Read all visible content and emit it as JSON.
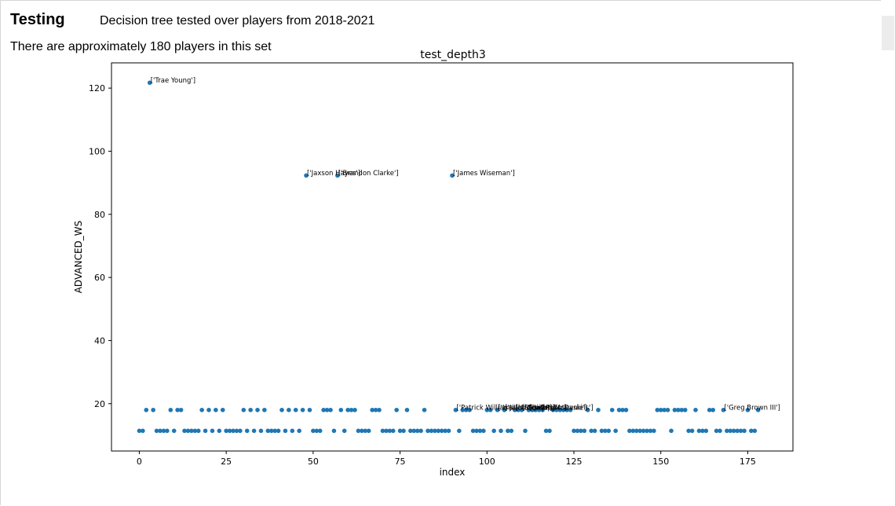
{
  "page": {
    "heading": "Testing",
    "subtitle": "Decision tree tested over players from 2018-2021",
    "note": "There are approximately 180 players in this set"
  },
  "colors": {
    "marker": "#1f77b4",
    "axis": "#000000",
    "background": "#ffffff"
  },
  "chart_data": {
    "type": "scatter",
    "title": "test_depth3",
    "xlabel": "index",
    "ylabel": "ADVANCED_WS",
    "xlim": [
      -8,
      188
    ],
    "ylim": [
      5,
      128
    ],
    "xticks": [
      0,
      25,
      50,
      75,
      100,
      125,
      150,
      175
    ],
    "yticks": [
      20,
      40,
      60,
      80,
      100,
      120
    ],
    "grid": false,
    "points": [
      {
        "x": 0,
        "y": 11.4
      },
      {
        "x": 1,
        "y": 11.4
      },
      {
        "x": 2,
        "y": 18
      },
      {
        "x": 4,
        "y": 18
      },
      {
        "x": 5,
        "y": 11.4
      },
      {
        "x": 6,
        "y": 11.4
      },
      {
        "x": 7,
        "y": 11.4
      },
      {
        "x": 8,
        "y": 11.4
      },
      {
        "x": 9,
        "y": 18
      },
      {
        "x": 10,
        "y": 11.4
      },
      {
        "x": 11,
        "y": 18
      },
      {
        "x": 12,
        "y": 18
      },
      {
        "x": 13,
        "y": 11.4
      },
      {
        "x": 14,
        "y": 11.4
      },
      {
        "x": 15,
        "y": 11.4
      },
      {
        "x": 16,
        "y": 11.4
      },
      {
        "x": 17,
        "y": 11.4
      },
      {
        "x": 18,
        "y": 18
      },
      {
        "x": 19,
        "y": 11.4
      },
      {
        "x": 20,
        "y": 18
      },
      {
        "x": 21,
        "y": 11.4
      },
      {
        "x": 22,
        "y": 18
      },
      {
        "x": 23,
        "y": 11.4
      },
      {
        "x": 24,
        "y": 18
      },
      {
        "x": 25,
        "y": 11.4
      },
      {
        "x": 26,
        "y": 11.4
      },
      {
        "x": 27,
        "y": 11.4
      },
      {
        "x": 28,
        "y": 11.4
      },
      {
        "x": 29,
        "y": 11.4
      },
      {
        "x": 30,
        "y": 18
      },
      {
        "x": 31,
        "y": 11.4
      },
      {
        "x": 32,
        "y": 18
      },
      {
        "x": 33,
        "y": 11.4
      },
      {
        "x": 34,
        "y": 18
      },
      {
        "x": 35,
        "y": 11.4
      },
      {
        "x": 36,
        "y": 18
      },
      {
        "x": 37,
        "y": 11.4
      },
      {
        "x": 38,
        "y": 11.4
      },
      {
        "x": 39,
        "y": 11.4
      },
      {
        "x": 40,
        "y": 11.4
      },
      {
        "x": 41,
        "y": 18
      },
      {
        "x": 42,
        "y": 11.4
      },
      {
        "x": 43,
        "y": 18
      },
      {
        "x": 44,
        "y": 11.4
      },
      {
        "x": 45,
        "y": 18
      },
      {
        "x": 46,
        "y": 11.4
      },
      {
        "x": 47,
        "y": 18
      },
      {
        "x": 48,
        "y": 92.3
      },
      {
        "x": 49,
        "y": 18
      },
      {
        "x": 50,
        "y": 11.4
      },
      {
        "x": 51,
        "y": 11.4
      },
      {
        "x": 52,
        "y": 11.4
      },
      {
        "x": 53,
        "y": 18
      },
      {
        "x": 54,
        "y": 18
      },
      {
        "x": 55,
        "y": 18
      },
      {
        "x": 56,
        "y": 11.4
      },
      {
        "x": 57,
        "y": 92.3
      },
      {
        "x": 58,
        "y": 18
      },
      {
        "x": 59,
        "y": 11.4
      },
      {
        "x": 60,
        "y": 18
      },
      {
        "x": 61,
        "y": 18
      },
      {
        "x": 62,
        "y": 18
      },
      {
        "x": 63,
        "y": 11.4
      },
      {
        "x": 64,
        "y": 11.4
      },
      {
        "x": 65,
        "y": 11.4
      },
      {
        "x": 66,
        "y": 11.4
      },
      {
        "x": 67,
        "y": 18
      },
      {
        "x": 68,
        "y": 18
      },
      {
        "x": 69,
        "y": 18
      },
      {
        "x": 70,
        "y": 11.4
      },
      {
        "x": 71,
        "y": 11.4
      },
      {
        "x": 72,
        "y": 11.4
      },
      {
        "x": 73,
        "y": 11.4
      },
      {
        "x": 74,
        "y": 18
      },
      {
        "x": 75,
        "y": 11.4
      },
      {
        "x": 76,
        "y": 11.4
      },
      {
        "x": 77,
        "y": 18
      },
      {
        "x": 78,
        "y": 11.4
      },
      {
        "x": 79,
        "y": 11.4
      },
      {
        "x": 80,
        "y": 11.4
      },
      {
        "x": 81,
        "y": 11.4
      },
      {
        "x": 82,
        "y": 18
      },
      {
        "x": 83,
        "y": 11.4
      },
      {
        "x": 84,
        "y": 11.4
      },
      {
        "x": 85,
        "y": 11.4
      },
      {
        "x": 86,
        "y": 11.4
      },
      {
        "x": 87,
        "y": 11.4
      },
      {
        "x": 88,
        "y": 11.4
      },
      {
        "x": 89,
        "y": 11.4
      },
      {
        "x": 90,
        "y": 92.3
      },
      {
        "x": 91,
        "y": 18
      },
      {
        "x": 92,
        "y": 11.4
      },
      {
        "x": 93,
        "y": 18
      },
      {
        "x": 94,
        "y": 18
      },
      {
        "x": 95,
        "y": 18
      },
      {
        "x": 96,
        "y": 11.4
      },
      {
        "x": 97,
        "y": 11.4
      },
      {
        "x": 98,
        "y": 11.4
      },
      {
        "x": 99,
        "y": 11.4
      },
      {
        "x": 100,
        "y": 18
      },
      {
        "x": 101,
        "y": 18
      },
      {
        "x": 102,
        "y": 11.4
      },
      {
        "x": 103,
        "y": 18
      },
      {
        "x": 104,
        "y": 11.4
      },
      {
        "x": 105,
        "y": 18
      },
      {
        "x": 106,
        "y": 11.4
      },
      {
        "x": 107,
        "y": 11.4
      },
      {
        "x": 108,
        "y": 18
      },
      {
        "x": 109,
        "y": 18
      },
      {
        "x": 110,
        "y": 18
      },
      {
        "x": 111,
        "y": 11.4
      },
      {
        "x": 112,
        "y": 18
      },
      {
        "x": 113,
        "y": 18
      },
      {
        "x": 114,
        "y": 18
      },
      {
        "x": 115,
        "y": 18
      },
      {
        "x": 116,
        "y": 18
      },
      {
        "x": 117,
        "y": 11.4
      },
      {
        "x": 118,
        "y": 11.4
      },
      {
        "x": 119,
        "y": 18
      },
      {
        "x": 120,
        "y": 18
      },
      {
        "x": 121,
        "y": 18
      },
      {
        "x": 122,
        "y": 18
      },
      {
        "x": 123,
        "y": 18
      },
      {
        "x": 124,
        "y": 18
      },
      {
        "x": 125,
        "y": 11.4
      },
      {
        "x": 126,
        "y": 11.4
      },
      {
        "x": 127,
        "y": 11.4
      },
      {
        "x": 128,
        "y": 11.4
      },
      {
        "x": 129,
        "y": 18
      },
      {
        "x": 130,
        "y": 11.4
      },
      {
        "x": 131,
        "y": 11.4
      },
      {
        "x": 132,
        "y": 18
      },
      {
        "x": 133,
        "y": 11.4
      },
      {
        "x": 134,
        "y": 11.4
      },
      {
        "x": 135,
        "y": 11.4
      },
      {
        "x": 136,
        "y": 18
      },
      {
        "x": 137,
        "y": 11.4
      },
      {
        "x": 138,
        "y": 18
      },
      {
        "x": 139,
        "y": 18
      },
      {
        "x": 140,
        "y": 18
      },
      {
        "x": 141,
        "y": 11.4
      },
      {
        "x": 142,
        "y": 11.4
      },
      {
        "x": 143,
        "y": 11.4
      },
      {
        "x": 144,
        "y": 11.4
      },
      {
        "x": 145,
        "y": 11.4
      },
      {
        "x": 146,
        "y": 11.4
      },
      {
        "x": 147,
        "y": 11.4
      },
      {
        "x": 148,
        "y": 11.4
      },
      {
        "x": 149,
        "y": 18
      },
      {
        "x": 150,
        "y": 18
      },
      {
        "x": 151,
        "y": 18
      },
      {
        "x": 152,
        "y": 18
      },
      {
        "x": 153,
        "y": 11.4
      },
      {
        "x": 154,
        "y": 18
      },
      {
        "x": 155,
        "y": 18
      },
      {
        "x": 156,
        "y": 18
      },
      {
        "x": 157,
        "y": 18
      },
      {
        "x": 158,
        "y": 11.4
      },
      {
        "x": 159,
        "y": 11.4
      },
      {
        "x": 160,
        "y": 18
      },
      {
        "x": 161,
        "y": 11.4
      },
      {
        "x": 162,
        "y": 11.4
      },
      {
        "x": 163,
        "y": 11.4
      },
      {
        "x": 164,
        "y": 18
      },
      {
        "x": 165,
        "y": 18
      },
      {
        "x": 166,
        "y": 11.4
      },
      {
        "x": 167,
        "y": 11.4
      },
      {
        "x": 168,
        "y": 18
      },
      {
        "x": 169,
        "y": 11.4
      },
      {
        "x": 170,
        "y": 11.4
      },
      {
        "x": 171,
        "y": 11.4
      },
      {
        "x": 172,
        "y": 11.4
      },
      {
        "x": 173,
        "y": 11.4
      },
      {
        "x": 174,
        "y": 11.4
      },
      {
        "x": 175,
        "y": 18
      },
      {
        "x": 176,
        "y": 11.4
      },
      {
        "x": 177,
        "y": 11.4
      },
      {
        "x": 178,
        "y": 18
      },
      {
        "x": 3,
        "y": 121.7
      }
    ],
    "annotations": [
      {
        "x": 3,
        "y": 121.7,
        "text": "['Trae Young']"
      },
      {
        "x": 48,
        "y": 92.3,
        "text": "['Jaxson Hayes']"
      },
      {
        "x": 57,
        "y": 92.3,
        "text": "['Brandon Clarke']"
      },
      {
        "x": 90,
        "y": 92.3,
        "text": "['James Wiseman']"
      },
      {
        "x": 91,
        "y": 18,
        "text": "['Patrick Williams']"
      },
      {
        "x": 103,
        "y": 18,
        "text": "['Isaiah Stewart']"
      },
      {
        "x": 105,
        "y": 18,
        "text": "['Jalen Smith']"
      },
      {
        "x": 108,
        "y": 18,
        "text": "['Aleksej Pokusevski']"
      },
      {
        "x": 110,
        "y": 18,
        "text": "['Obi Toppin']"
      },
      {
        "x": 112,
        "y": 18,
        "text": "['Jaden McDaniels']"
      },
      {
        "x": 168,
        "y": 18,
        "text": "['Greg Brown III']"
      }
    ]
  }
}
